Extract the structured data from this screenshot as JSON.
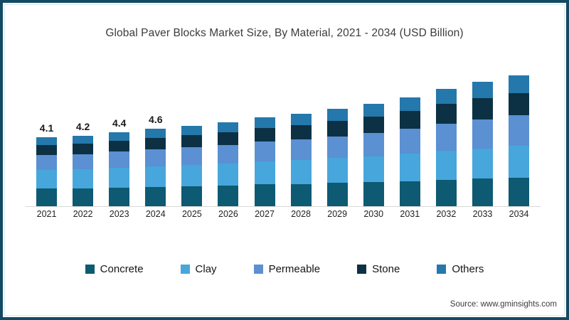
{
  "frame": {
    "border_color": "#134a63",
    "inner_line_color": "#d8e9f1",
    "background": "#ffffff"
  },
  "source_note": "Source: www.gminsights.com",
  "chart_data": {
    "type": "bar",
    "stacked": true,
    "title": "Global Paver Blocks Market Size, By Material, 2021 - 2034 (USD Billion)",
    "xlabel": "",
    "ylabel": "",
    "unit": "USD Billion",
    "grid": false,
    "legend_position": "bottom",
    "ylim": [
      0,
      8
    ],
    "baseline_color": "#d9d9d9",
    "categories": [
      "2021",
      "2022",
      "2023",
      "2024",
      "2025",
      "2026",
      "2027",
      "2028",
      "2029",
      "2030",
      "2031",
      "2032",
      "2033",
      "2034"
    ],
    "totals": [
      4.1,
      4.2,
      4.4,
      4.6,
      4.8,
      5.0,
      5.3,
      5.5,
      5.8,
      6.1,
      6.5,
      7.0,
      7.4,
      7.8
    ],
    "value_labels": [
      "4.1",
      "4.2",
      "4.4",
      "4.6",
      "",
      "",
      "",
      "",
      "",
      "",
      "",
      "",
      "",
      ""
    ],
    "series": [
      {
        "name": "Concrete",
        "color": "#0d5a72",
        "values": [
          1.05,
          1.07,
          1.12,
          1.16,
          1.2,
          1.24,
          1.3,
          1.33,
          1.38,
          1.43,
          1.5,
          1.58,
          1.64,
          1.7
        ]
      },
      {
        "name": "Clay",
        "color": "#47a6dc",
        "values": [
          1.1,
          1.12,
          1.17,
          1.22,
          1.27,
          1.32,
          1.39,
          1.43,
          1.49,
          1.55,
          1.63,
          1.73,
          1.81,
          1.89
        ]
      },
      {
        "name": "Permeable",
        "color": "#5b90d2",
        "values": [
          0.9,
          0.92,
          0.96,
          1.0,
          1.05,
          1.1,
          1.17,
          1.22,
          1.3,
          1.38,
          1.48,
          1.62,
          1.73,
          1.84
        ]
      },
      {
        "name": "Stone",
        "color": "#0c3144",
        "values": [
          0.6,
          0.62,
          0.65,
          0.69,
          0.73,
          0.76,
          0.82,
          0.86,
          0.92,
          0.98,
          1.06,
          1.16,
          1.24,
          1.32
        ]
      },
      {
        "name": "Others",
        "color": "#2478ab",
        "values": [
          0.45,
          0.47,
          0.5,
          0.53,
          0.55,
          0.58,
          0.62,
          0.66,
          0.71,
          0.76,
          0.83,
          0.91,
          0.98,
          1.05
        ]
      }
    ]
  }
}
